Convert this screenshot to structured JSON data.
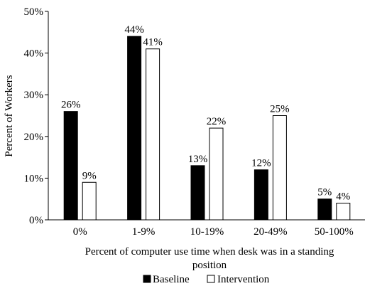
{
  "chart_data": {
    "type": "bar",
    "categories": [
      "0%",
      "1-9%",
      "10-19%",
      "20-49%",
      "50-100%"
    ],
    "series": [
      {
        "name": "Baseline",
        "values": [
          26,
          44,
          13,
          12,
          5
        ],
        "labels": [
          "26%",
          "44%",
          "13%",
          "12%",
          "5%"
        ],
        "color": "#000000"
      },
      {
        "name": "Intervention",
        "values": [
          9,
          41,
          22,
          25,
          4
        ],
        "labels": [
          "9%",
          "41%",
          "22%",
          "25%",
          "4%"
        ],
        "color": "#ffffff"
      }
    ],
    "xlabel_line1": "Percent of computer use time when desk was in a standing",
    "xlabel_line2": "position",
    "ylabel": "Percent of Workers",
    "ylim": [
      0,
      50
    ],
    "yticks": [
      0,
      10,
      20,
      30,
      40,
      50
    ],
    "ytick_labels": [
      "0%",
      "10%",
      "20%",
      "30%",
      "40%",
      "50%"
    ],
    "grid": false,
    "legend_position": "bottom"
  }
}
